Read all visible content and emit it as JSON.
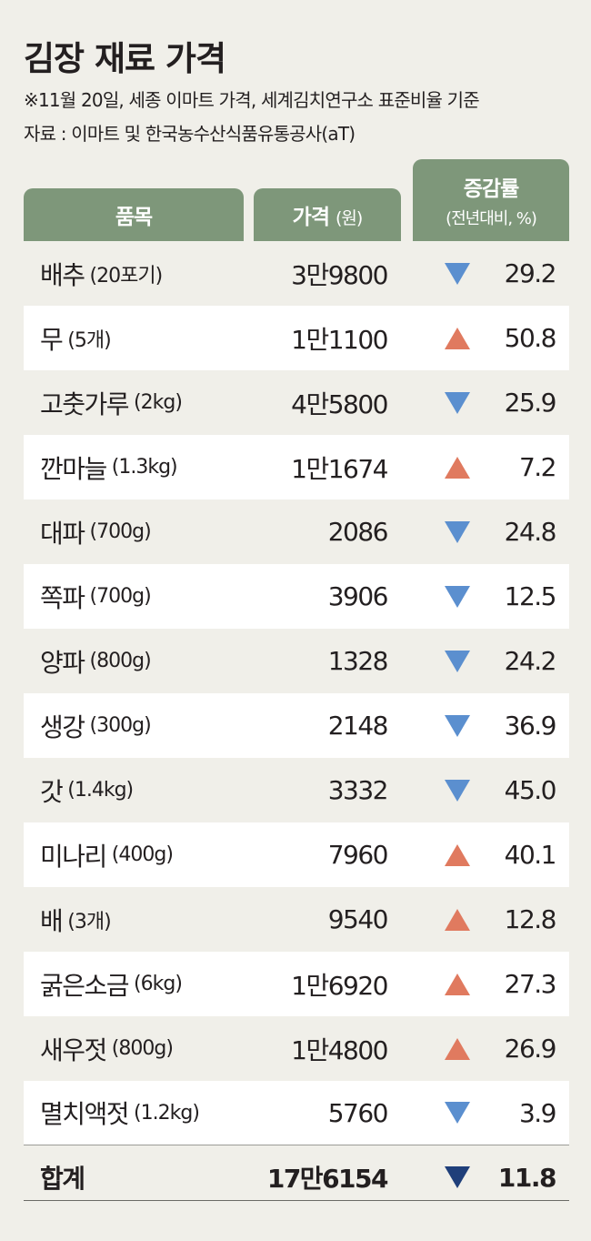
{
  "title": "김장 재료 가격",
  "notes": [
    "※11월 20일, 세종 이마트 가격, 세계김치연구소 표준비율 기준",
    "자료 : 이마트 및 한국농수산식품유통공사(aT)"
  ],
  "colors": {
    "header": "#7e977a",
    "up": "#e07a5f",
    "down": "#5b8fcf",
    "total_down": "#1f3f7a"
  },
  "chart_data": {
    "type": "table",
    "columns": [
      {
        "label": "품목",
        "sub": ""
      },
      {
        "label": "가격",
        "sub": "(원)"
      },
      {
        "label": "증감률",
        "sub": "(전년대비, %)"
      }
    ],
    "rows": [
      {
        "item": "배추",
        "unit": "(20포기)",
        "price": "3만9800",
        "direction": "down",
        "change": "29.2"
      },
      {
        "item": "무",
        "unit": "(5개)",
        "price": "1만1100",
        "direction": "up",
        "change": "50.8"
      },
      {
        "item": "고춧가루",
        "unit": "(2kg)",
        "price": "4만5800",
        "direction": "down",
        "change": "25.9"
      },
      {
        "item": "깐마늘",
        "unit": "(1.3kg)",
        "price": "1만1674",
        "direction": "up",
        "change": "7.2"
      },
      {
        "item": "대파",
        "unit": "(700g)",
        "price": "2086",
        "direction": "down",
        "change": "24.8"
      },
      {
        "item": "쪽파",
        "unit": "(700g)",
        "price": "3906",
        "direction": "down",
        "change": "12.5"
      },
      {
        "item": "양파",
        "unit": "(800g)",
        "price": "1328",
        "direction": "down",
        "change": "24.2"
      },
      {
        "item": "생강",
        "unit": "(300g)",
        "price": "2148",
        "direction": "down",
        "change": "36.9"
      },
      {
        "item": "갓",
        "unit": "(1.4kg)",
        "price": "3332",
        "direction": "down",
        "change": "45.0"
      },
      {
        "item": "미나리",
        "unit": "(400g)",
        "price": "7960",
        "direction": "up",
        "change": "40.1"
      },
      {
        "item": "배",
        "unit": "(3개)",
        "price": "9540",
        "direction": "up",
        "change": "12.8"
      },
      {
        "item": "굵은소금",
        "unit": "(6kg)",
        "price": "1만6920",
        "direction": "up",
        "change": "27.3"
      },
      {
        "item": "새우젓",
        "unit": "(800g)",
        "price": "1만4800",
        "direction": "up",
        "change": "26.9"
      },
      {
        "item": "멸치액젓",
        "unit": "(1.2kg)",
        "price": "5760",
        "direction": "down",
        "change": "3.9"
      }
    ],
    "total": {
      "item": "합계",
      "price": "17만6154",
      "direction": "down",
      "change": "11.8"
    }
  }
}
